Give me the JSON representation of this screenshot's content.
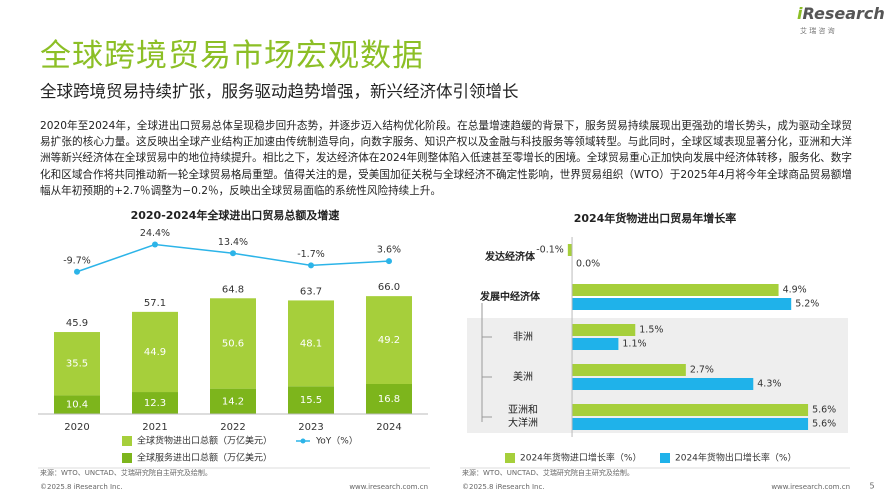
{
  "header": {
    "title": "全球跨境贸易市场宏观数据",
    "subtitle": "全球跨境贸易持续扩张，服务驱动趋势增强，新兴经济体引领增长"
  },
  "logo": {
    "name": "iResearch",
    "tagline": "艾 瑞 咨 询"
  },
  "paragraph": "2020年至2024年，全球进出口贸易总体呈现稳步回升态势，并逐步迈入结构优化阶段。在总量增速趋缓的背景下，服务贸易持续展现出更强劲的增长势头，成为驱动全球贸易扩张的核心力量。这反映出全球产业结构正加速由传统制造导向，向数字服务、知识产权以及金融与科技服务等领域转型。与此同时，全球区域表现显著分化，亚洲和大洋洲等新兴经济体在全球贸易中的地位持续提升。相比之下，发达经济体在2024年则整体陷入低速甚至零增长的困境。全球贸易重心正加快向发展中经济体转移，服务化、数字化和区域合作将共同推动新一轮全球贸易格局重塑。值得关注的是，受美国加征关税与全球经济不确定性影响，世界贸易组织（WTO）于2025年4月将今年全球商品贸易额增幅从年初预期的+2.7％调整为−0.2％，反映出全球贸易面临的系统性风险持续上升。",
  "chart_data": [
    {
      "type": "bar",
      "stacked": true,
      "title": "2020-2024年全球进出口贸易总额及增速",
      "categories": [
        "2020",
        "2021",
        "2022",
        "2023",
        "2024"
      ],
      "ylim": [
        0,
        70
      ],
      "y2lim": [
        -20,
        30
      ],
      "series": [
        {
          "name": "全球服务进出口总额（万亿美元）",
          "color": "#7db51c",
          "values": [
            10.4,
            12.3,
            14.2,
            15.5,
            16.8
          ]
        },
        {
          "name": "全球货物进出口总额（万亿美元）",
          "color": "#a6cf3b",
          "values": [
            35.5,
            44.9,
            50.6,
            48.1,
            49.2
          ]
        },
        {
          "name": "YoY（%）",
          "type": "line",
          "axis": "y2",
          "color": "#2cb4e8",
          "values": [
            -9.7,
            24.4,
            13.4,
            -1.7,
            3.6
          ],
          "value_labels": [
            "-9.7%",
            "24.4%",
            "13.4%",
            "-1.7%",
            "3.6%"
          ]
        }
      ],
      "totals": {
        "values": [
          45.9,
          57.1,
          64.8,
          63.7,
          66.0
        ],
        "value_labels": [
          "45.9",
          "57.1",
          "64.8",
          "63.7",
          "66.0"
        ]
      },
      "source": "来源：WTO、UNCTAD、艾瑞研究院自主研究及绘制。"
    },
    {
      "type": "bar",
      "orientation": "horizontal",
      "title": "2024年货物进出口贸易年增长率",
      "categories": [
        "发达经济体",
        "发展中经济体",
        "非洲",
        "美洲",
        "亚洲和大洋洲"
      ],
      "xlim": [
        -0.3,
        6.5
      ],
      "series": [
        {
          "name": "2024年货物进口增长率（%）",
          "color": "#a6cf3b",
          "values": [
            -0.1,
            4.9,
            1.5,
            2.7,
            5.6
          ],
          "value_labels": [
            "-0.1%",
            "4.9%",
            "1.5%",
            "2.7%",
            "5.6%"
          ]
        },
        {
          "name": "2024年货物出口增长率（%）",
          "color": "#1fb2ea",
          "values": [
            0.0,
            5.2,
            1.1,
            4.3,
            5.6
          ],
          "value_labels": [
            "0.0%",
            "5.2%",
            "1.1%",
            "4.3%",
            "5.6%"
          ]
        }
      ],
      "source": "来源：WTO、UNCTAD、艾瑞研究院自主研究及绘制。"
    }
  ],
  "footer": {
    "copyright": "©2025.8 iResearch Inc.",
    "url": "www.iresearch.com.cn",
    "page": "5"
  }
}
